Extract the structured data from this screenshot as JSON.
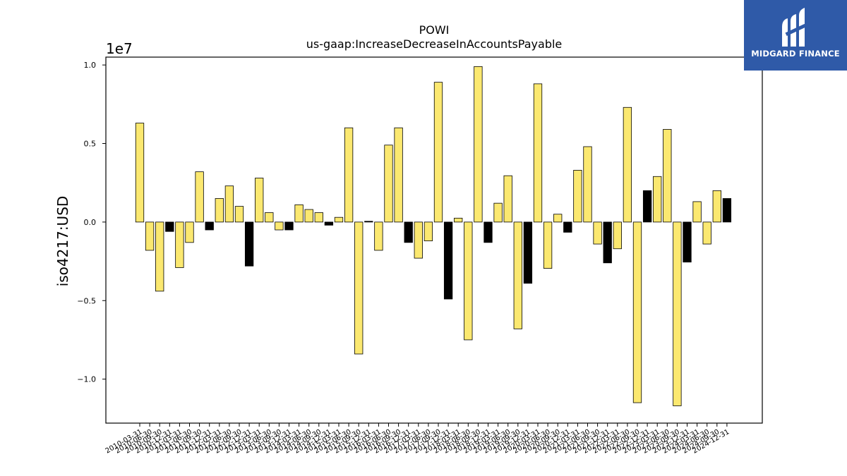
{
  "logo": {
    "text": "MIDGARD FINANCE"
  },
  "chart_data": {
    "type": "bar",
    "title": "POWI",
    "subtitle": "us-gaap:IncreaseDecreaseInAccountsPayable",
    "ylabel": "iso4217:USD",
    "y_multiplier_label": "1e7",
    "ylim": [
      -1.28,
      1.05
    ],
    "yticks": [
      1.0,
      0.5,
      0.0,
      -0.5,
      -1.0
    ],
    "ytick_labels": [
      "1.0",
      "0.5",
      "0.0",
      "−0.5",
      "−1.0"
    ],
    "categories": [
      "2010-03-31",
      "2010-06-30",
      "2010-09-30",
      "2010-12-31",
      "2011-03-31",
      "2011-06-30",
      "2011-09-30",
      "2011-12-31",
      "2012-03-31",
      "2012-06-30",
      "2012-09-30",
      "2012-12-31",
      "2013-03-31",
      "2013-06-30",
      "2013-09-30",
      "2013-12-31",
      "2014-03-31",
      "2014-06-30",
      "2014-09-30",
      "2014-12-31",
      "2015-03-31",
      "2015-06-30",
      "2015-09-30",
      "2015-12-31",
      "2016-03-31",
      "2016-06-30",
      "2016-09-30",
      "2016-12-31",
      "2017-03-31",
      "2017-06-30",
      "2017-09-30",
      "2017-12-31",
      "2018-03-31",
      "2018-06-30",
      "2018-09-30",
      "2018-12-31",
      "2019-03-31",
      "2019-06-30",
      "2019-09-30",
      "2019-12-31",
      "2020-03-31",
      "2020-06-30",
      "2020-09-30",
      "2020-12-31",
      "2021-03-31",
      "2021-06-30",
      "2021-09-30",
      "2021-12-31",
      "2022-03-31",
      "2022-06-30",
      "2022-09-30",
      "2022-12-31",
      "2023-03-31",
      "2023-06-30",
      "2023-09-30",
      "2023-12-31",
      "2024-03-31",
      "2024-06-30",
      "2024-09-30",
      "2024-12-31"
    ],
    "values": [
      0.63,
      -0.18,
      -0.44,
      -0.06,
      -0.29,
      -0.13,
      0.32,
      -0.05,
      0.15,
      0.23,
      0.1,
      -0.28,
      0.28,
      0.06,
      -0.05,
      -0.05,
      0.11,
      0.08,
      0.06,
      -0.02,
      0.03,
      0.6,
      -0.84,
      0.005,
      -0.18,
      0.49,
      0.6,
      -0.13,
      -0.23,
      -0.12,
      0.89,
      -0.49,
      0.025,
      -0.75,
      0.99,
      -0.13,
      0.12,
      0.295,
      -0.68,
      -0.39,
      0.88,
      -0.295,
      0.05,
      -0.065,
      0.33,
      0.48,
      -0.14,
      -0.26,
      -0.17,
      0.73,
      -1.15,
      0.2,
      0.29,
      0.59,
      -1.17,
      -0.255,
      0.13,
      -0.14,
      0.2,
      0.15
    ],
    "bar_colors": [
      "#fbe870",
      "#fbe870",
      "#fbe870",
      "#000000",
      "#fbe870",
      "#fbe870",
      "#fbe870",
      "#000000",
      "#fbe870",
      "#fbe870",
      "#fbe870",
      "#000000",
      "#fbe870",
      "#fbe870",
      "#fbe870",
      "#000000",
      "#fbe870",
      "#fbe870",
      "#fbe870",
      "#000000",
      "#fbe870",
      "#fbe870",
      "#fbe870",
      "#000000",
      "#fbe870",
      "#fbe870",
      "#fbe870",
      "#000000",
      "#fbe870",
      "#fbe870",
      "#fbe870",
      "#000000",
      "#fbe870",
      "#fbe870",
      "#fbe870",
      "#000000",
      "#fbe870",
      "#fbe870",
      "#fbe870",
      "#000000",
      "#fbe870",
      "#fbe870",
      "#fbe870",
      "#000000",
      "#fbe870",
      "#fbe870",
      "#fbe870",
      "#000000",
      "#fbe870",
      "#fbe870",
      "#fbe870",
      "#000000",
      "#fbe870",
      "#fbe870",
      "#fbe870",
      "#000000",
      "#fbe870",
      "#fbe870",
      "#fbe870",
      "#000000"
    ],
    "grid": false,
    "legend": "none"
  }
}
